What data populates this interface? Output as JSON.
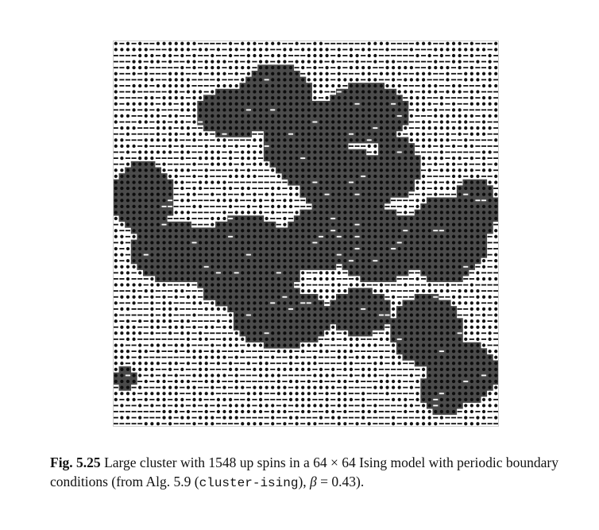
{
  "figure": {
    "description_label": "64x64 Ising spin configuration lattice",
    "grid_size": 64,
    "colors": {
      "cluster_fill": "#4a4a4a",
      "up_spin_marker": "#111111",
      "down_spin_marker": "#111111",
      "background": "#ffffff"
    }
  },
  "caption": {
    "label": "Fig. 5.25",
    "text_part1": " Large cluster with 1548 up spins in a 64 × 64 Ising model with periodic boundary conditions (from Alg. 5.9 (",
    "algorithm_name": "cluster-ising",
    "text_part2": "), ",
    "beta_symbol": "β",
    "beta_value": " = 0.43)."
  }
}
